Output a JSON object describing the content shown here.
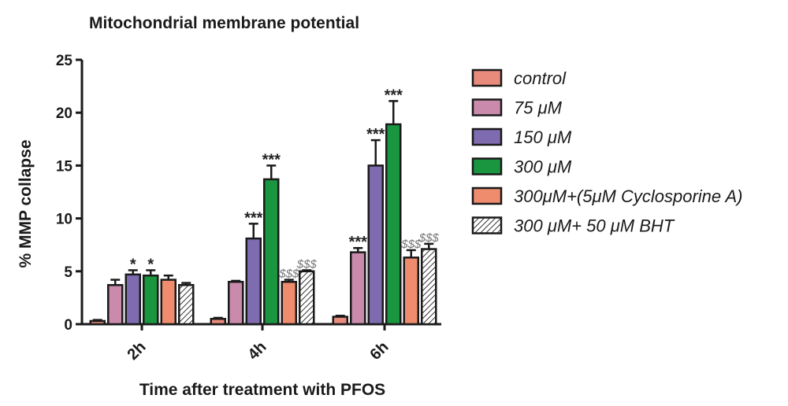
{
  "chart_data": {
    "type": "bar",
    "title": "Mitochondrial membrane potential",
    "xlabel": "Time after treatment with PFOS",
    "ylabel": "% MMP collapse",
    "ylim": [
      0,
      25
    ],
    "yticks": [
      "0",
      "5",
      "10",
      "15",
      "20",
      "25"
    ],
    "ytick_values": [
      0,
      5,
      10,
      15,
      20,
      25
    ],
    "categories": [
      "2h",
      "4h",
      "6h"
    ],
    "legend_position": "right",
    "series": [
      {
        "name": "control",
        "color": "#e88a7c",
        "pattern": "solid",
        "values": [
          0.3,
          0.5,
          0.7
        ],
        "errors": [
          0.1,
          0.1,
          0.1
        ],
        "annotations": [
          "",
          "",
          ""
        ],
        "annotation_kind": "star"
      },
      {
        "name": "75 μM",
        "color": "#c98aab",
        "pattern": "solid",
        "values": [
          3.7,
          4.0,
          6.8
        ],
        "errors": [
          0.5,
          0.1,
          0.4
        ],
        "annotations": [
          "",
          "",
          "***"
        ],
        "annotation_kind": "star"
      },
      {
        "name": "150 μM",
        "color": "#7e6bb0",
        "pattern": "solid",
        "values": [
          4.7,
          8.1,
          15.0
        ],
        "errors": [
          0.4,
          1.4,
          2.4
        ],
        "annotations": [
          "*",
          "***",
          "***"
        ],
        "annotation_kind": "star"
      },
      {
        "name": "300 μM",
        "color": "#1a9640",
        "pattern": "solid",
        "values": [
          4.6,
          13.7,
          18.9
        ],
        "errors": [
          0.5,
          1.3,
          2.2
        ],
        "annotations": [
          "*",
          "***",
          "***"
        ],
        "annotation_kind": "star"
      },
      {
        "name": "300μM+(5μM Cyclosporine A)",
        "color": "#f08c6e",
        "pattern": "solid",
        "values": [
          4.2,
          4.0,
          6.3
        ],
        "errors": [
          0.4,
          0.2,
          0.7
        ],
        "annotations": [
          "",
          "$$$",
          "$$$"
        ],
        "annotation_kind": "dollar"
      },
      {
        "name": "300 μM+ 50 μM BHT",
        "color": "#ffffff",
        "pattern": "hatch",
        "values": [
          3.7,
          5.0,
          7.1
        ],
        "errors": [
          0.2,
          0.1,
          0.5
        ],
        "annotations": [
          "",
          "$$$",
          "$$$"
        ],
        "annotation_kind": "dollar"
      }
    ]
  }
}
